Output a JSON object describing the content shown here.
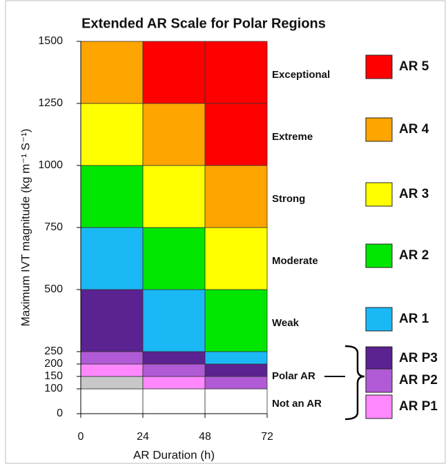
{
  "chart_data": {
    "type": "heatmap",
    "title": "Extended AR Scale for Polar Regions",
    "x_label": "AR Duration (h)",
    "y_label": "Maximum IVT magnitude (kg m⁻¹ S⁻¹)",
    "xlim": [
      0,
      72
    ],
    "ylim": [
      0,
      1500
    ],
    "xticks": [
      0,
      24,
      48,
      72
    ],
    "yticks": [
      0,
      100,
      150,
      200,
      250,
      500,
      750,
      1000,
      1250,
      1500
    ],
    "x_bins": [
      0,
      24,
      48,
      72
    ],
    "y_bins": [
      0,
      100,
      150,
      200,
      250,
      500,
      750,
      1000,
      1250,
      1500
    ],
    "cells": [
      [
        "#ffffff",
        "#ffffff",
        "#ffffff"
      ],
      [
        "#c8c8c8",
        "#ff88ff",
        "#b05ad6"
      ],
      [
        "#ff88ff",
        "#b05ad6",
        "#5b2291"
      ],
      [
        "#b05ad6",
        "#5b2291",
        "#1ab8f5"
      ],
      [
        "#5b2291",
        "#1ab8f5",
        "#00e600"
      ],
      [
        "#1ab8f5",
        "#00e600",
        "#ffff00"
      ],
      [
        "#00e600",
        "#ffff00",
        "#ffa500"
      ],
      [
        "#ffff00",
        "#ffa500",
        "#ff0000"
      ],
      [
        "#ffa500",
        "#ff0000",
        "#ff0000"
      ]
    ],
    "band_labels": [
      "Not an AR",
      "Polar AR",
      "Weak",
      "Moderate",
      "Strong",
      "Extreme",
      "Exceptional"
    ],
    "legend": [
      {
        "name": "AR 5",
        "color": "#ff0000"
      },
      {
        "name": "AR 4",
        "color": "#ffa500"
      },
      {
        "name": "AR 3",
        "color": "#ffff00"
      },
      {
        "name": "AR 2",
        "color": "#00e600"
      },
      {
        "name": "AR 1",
        "color": "#1ab8f5"
      },
      {
        "name": "AR P3",
        "color": "#5b2291"
      },
      {
        "name": "AR P2",
        "color": "#b05ad6"
      },
      {
        "name": "AR P1",
        "color": "#ff88ff"
      }
    ]
  }
}
